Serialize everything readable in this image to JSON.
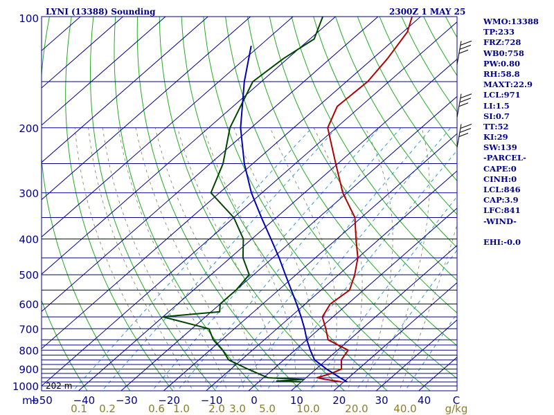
{
  "header": {
    "station_title": "LYNI (13388) Sounding",
    "valid_time": "2300Z  1 MAY 25"
  },
  "indices": [
    "WMO:13388",
    "TP:233",
    "FRZ:728",
    "WB0:758",
    "PW:0.80",
    "RH:58.8",
    "MAXT:22.9",
    "LCL:971",
    "LI:1.5",
    "SI:0.7",
    "TT:52",
    "KI:29",
    "SW:139",
    "-PARCEL-",
    "CAPE:0",
    "CINH:0",
    "LCL:846",
    "CAP:3.9",
    "LFC:841",
    "-WIND-",
    "",
    "EHI:-0.0"
  ],
  "surface_height_label": "202 m",
  "units": {
    "pressure": "mb",
    "temperature": "C",
    "mixing_ratio": "g/kg"
  },
  "colors": {
    "isobar": "#00008b",
    "isotherm": "#00008b",
    "dry_adiabat": "#22aa22",
    "moist_adiabat": "#8a8a70",
    "mixing_ratio": "#3399cc",
    "temperature": "#b00000",
    "dewpoint": "#004400",
    "parcel": "#0000b4",
    "text": "#00008b",
    "mixing_ratio_text": "#8b7d2a"
  },
  "chart_data": {
    "type": "line",
    "title": "LYNI (13388) Sounding",
    "x_axis": {
      "label": "C",
      "range": [
        -50,
        50
      ],
      "ticks": [
        -50,
        -40,
        -30,
        -20,
        -10,
        0,
        10,
        20,
        30,
        40
      ]
    },
    "y_axis": {
      "label": "mb",
      "scale": "log",
      "range": [
        1000,
        100
      ],
      "ticks": [
        1000,
        900,
        800,
        700,
        600,
        500,
        400,
        300,
        200,
        100
      ]
    },
    "isobars_mb": [
      1000,
      975,
      950,
      925,
      900,
      875,
      850,
      825,
      800,
      775,
      750,
      700,
      650,
      600,
      550,
      500,
      450,
      400,
      350,
      300,
      250,
      200,
      150,
      100
    ],
    "mixing_ratio_labels": [
      "0.1",
      "0.2",
      "0.6",
      "1.0",
      "2.0",
      "3.0",
      "5.0",
      "10.0",
      "20.0",
      "40.0"
    ],
    "mixing_ratio_values_gkg": [
      0.1,
      0.2,
      0.6,
      1.0,
      2.0,
      3.0,
      5.0,
      10.0,
      20.0,
      40.0
    ],
    "series": [
      {
        "key": "temperature",
        "points": [
          [
            975,
            19.5
          ],
          [
            960,
            15
          ],
          [
            950,
            12.6
          ],
          [
            925,
            14.8
          ],
          [
            900,
            16
          ],
          [
            850,
            13.5
          ],
          [
            800,
            12.5
          ],
          [
            750,
            5
          ],
          [
            700,
            1.5
          ],
          [
            650,
            -2.5
          ],
          [
            600,
            -4.1
          ],
          [
            550,
            -3.3
          ],
          [
            500,
            -6.2
          ],
          [
            450,
            -10
          ],
          [
            400,
            -15.5
          ],
          [
            350,
            -21.5
          ],
          [
            300,
            -31
          ],
          [
            250,
            -40.5
          ],
          [
            200,
            -52
          ],
          [
            175,
            -55.5
          ],
          [
            150,
            -55
          ],
          [
            130,
            -56.5
          ],
          [
            110,
            -59
          ],
          [
            100,
            -62
          ]
        ]
      },
      {
        "key": "dewpoint",
        "points": [
          [
            975,
            10
          ],
          [
            970,
            4
          ],
          [
            960,
            10
          ],
          [
            950,
            1
          ],
          [
            900,
            -6
          ],
          [
            850,
            -13
          ],
          [
            800,
            -17
          ],
          [
            750,
            -22
          ],
          [
            700,
            -26
          ],
          [
            650,
            -40
          ],
          [
            630,
            -28
          ],
          [
            600,
            -30
          ],
          [
            550,
            -30
          ],
          [
            500,
            -31
          ],
          [
            450,
            -37
          ],
          [
            400,
            -42
          ],
          [
            350,
            -50
          ],
          [
            300,
            -62
          ],
          [
            250,
            -67
          ],
          [
            200,
            -75
          ],
          [
            150,
            -82
          ],
          [
            130,
            -81
          ],
          [
            115,
            -79
          ],
          [
            100,
            -83
          ]
        ]
      },
      {
        "key": "parcel",
        "points": [
          [
            975,
            20.8
          ],
          [
            950,
            18
          ],
          [
            900,
            12.5
          ],
          [
            850,
            7.2
          ],
          [
            800,
            3.6
          ],
          [
            750,
            0
          ],
          [
            700,
            -3.5
          ],
          [
            650,
            -7.5
          ],
          [
            600,
            -12
          ],
          [
            550,
            -17
          ],
          [
            500,
            -22.5
          ],
          [
            450,
            -28.5
          ],
          [
            400,
            -35.5
          ],
          [
            350,
            -43.5
          ],
          [
            300,
            -52.5
          ],
          [
            250,
            -62
          ],
          [
            200,
            -72.5
          ],
          [
            150,
            -84
          ],
          [
            120,
            -92
          ]
        ]
      }
    ],
    "wind_barbs": [
      {
        "pressure_mb": 128,
        "label": "wind barb"
      },
      {
        "pressure_mb": 178,
        "label": "wind barb"
      },
      {
        "pressure_mb": 215,
        "label": "wind barb"
      }
    ]
  }
}
